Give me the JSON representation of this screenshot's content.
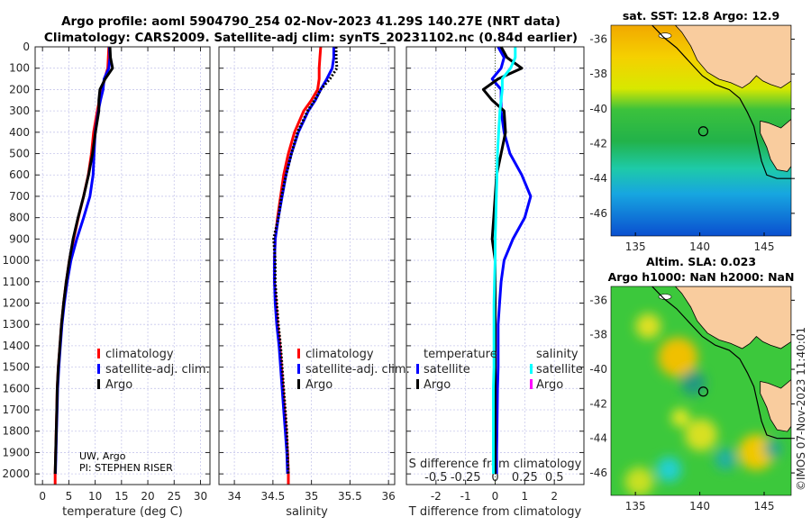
{
  "chart_data": {
    "type": "line",
    "title": [
      "Argo profile: aoml 5904790_254 02-Nov-2023 41.29S 140.27E (NRT data)",
      "Climatology: CARS2009. Satellite-adj clim: synTS_20231102.nc (0.84d earlier)"
    ],
    "depth_axis": {
      "ylim": [
        0,
        2050
      ],
      "reversed": true,
      "ticks": [
        0,
        100,
        200,
        300,
        400,
        500,
        600,
        700,
        800,
        900,
        1000,
        1100,
        1200,
        1300,
        1400,
        1500,
        1600,
        1700,
        1800,
        1900,
        2000
      ],
      "tick_labels": [
        "0",
        "100",
        "200",
        "300",
        "400",
        "500",
        "600",
        "700",
        "800",
        "900",
        "1000",
        "1100",
        "1200",
        "1300",
        "1400",
        "1500",
        "1600",
        "1700",
        "1800",
        "1900",
        "2000"
      ]
    },
    "depth": [
      0,
      50,
      100,
      150,
      200,
      250,
      300,
      400,
      500,
      600,
      700,
      800,
      900,
      1000,
      1100,
      1200,
      1300,
      1400,
      1500,
      1600,
      1700,
      1800,
      1900,
      2000
    ],
    "panels": [
      {
        "id": "temperature",
        "xlabel": "temperature (deg C)",
        "xlim": [
          -1.4,
          31.8
        ],
        "xticks": [
          0,
          5,
          10,
          15,
          20,
          25,
          30
        ],
        "xtick_labels": [
          "0",
          "5",
          "10",
          "15",
          "20",
          "25",
          "30"
        ],
        "grid": true,
        "series": [
          {
            "name": "climatology",
            "color": "#ff0000",
            "values": [
              12.6,
              12.5,
              12.4,
              11.8,
              11.3,
              10.8,
              10.4,
              9.7,
              9.3,
              8.7,
              7.8,
              6.8,
              5.9,
              5.1,
              4.5,
              4.0,
              3.6,
              3.3,
              3.0,
              2.8,
              2.7,
              2.6,
              2.5,
              2.4
            ]
          },
          {
            "name": "satellite-adj. clim.",
            "color": "#0000ff",
            "values": [
              12.7,
              12.8,
              12.6,
              11.7,
              11.5,
              11.0,
              10.6,
              10.0,
              9.8,
              9.6,
              9.0,
              7.8,
              6.5,
              5.4,
              4.7,
              4.15,
              3.7,
              3.4,
              3.1,
              2.88,
              2.77,
              2.66,
              2.55,
              2.45
            ]
          },
          {
            "name": "Argo",
            "color": "#000000",
            "values": [
              12.8,
              12.9,
              13.3,
              11.9,
              10.9,
              10.7,
              10.7,
              10.05,
              9.5,
              8.75,
              7.8,
              6.75,
              5.8,
              5.1,
              4.5,
              4.0,
              3.6,
              3.3,
              3.0,
              2.8,
              2.7,
              2.6,
              2.5,
              2.4
            ]
          }
        ],
        "legend": [
          "climatology",
          "satellite-adj. clim.",
          "Argo"
        ],
        "annotation": [
          "UW, Argo",
          "PI: STEPHEN RISER"
        ]
      },
      {
        "id": "salinity",
        "xlabel": "salinity",
        "xlim": [
          33.8,
          36.08
        ],
        "xticks": [
          34,
          34.5,
          35,
          35.5,
          36
        ],
        "xtick_labels": [
          "34",
          "34.5",
          "35",
          "35.5",
          "36"
        ],
        "grid": true,
        "series": [
          {
            "name": "climatology",
            "color": "#ff0000",
            "values": [
              35.12,
              35.11,
              35.1,
              35.1,
              35.08,
              35.0,
              34.9,
              34.78,
              34.7,
              34.64,
              34.6,
              34.56,
              34.53,
              34.52,
              34.52,
              34.54,
              34.56,
              34.59,
              34.61,
              34.63,
              34.65,
              34.67,
              34.69,
              34.7
            ]
          },
          {
            "name": "satellite-adj. clim.",
            "color": "#0000ff",
            "values": [
              35.29,
              35.29,
              35.27,
              35.2,
              35.12,
              35.05,
              34.96,
              34.83,
              34.74,
              34.67,
              34.62,
              34.57,
              34.53,
              34.52,
              34.52,
              34.53,
              34.55,
              34.58,
              34.6,
              34.62,
              34.64,
              34.66,
              34.68,
              34.69
            ]
          },
          {
            "name": "Argo",
            "color": "#000000",
            "dotted": true,
            "values": [
              35.32,
              35.32,
              35.33,
              35.24,
              35.12,
              35.04,
              34.95,
              34.82,
              34.74,
              34.67,
              34.61,
              34.57,
              34.51,
              34.53,
              34.53,
              34.55,
              34.57,
              34.6,
              34.62,
              34.64,
              34.66,
              34.68,
              34.69,
              34.7
            ]
          }
        ],
        "legend": [
          "climatology",
          "satellite-adj. clim.",
          "Argo"
        ]
      },
      {
        "id": "difference",
        "xlabel": "T difference from climatology",
        "xlim": [
          -3,
          3
        ],
        "xticks": [
          -2,
          -1,
          0,
          1,
          2
        ],
        "xtick_labels": [
          "-2",
          "-1",
          "0",
          "1",
          "2"
        ],
        "grid": true,
        "secondary_axis": {
          "label": "S difference from climatology",
          "xlim": [
            -0.75,
            0.75
          ],
          "ticks": [
            -0.5,
            -0.25,
            0,
            0.25,
            0.5
          ],
          "tick_labels": [
            "-0.5",
            "-0.25",
            "0",
            "0.25",
            "0.5"
          ]
        },
        "series": [
          {
            "name": "temperature satellite",
            "color": "#0000ff",
            "axis": "T",
            "values": [
              0.1,
              0.3,
              0.2,
              -0.1,
              0.2,
              0.2,
              0.2,
              0.3,
              0.5,
              0.9,
              1.2,
              1.0,
              0.6,
              0.3,
              0.2,
              0.15,
              0.1,
              0.1,
              0.1,
              0.08,
              0.07,
              0.06,
              0.05,
              0.05
            ]
          },
          {
            "name": "temperature Argo",
            "color": "#000000",
            "axis": "T",
            "values": [
              0.2,
              0.4,
              0.9,
              0.1,
              -0.4,
              -0.1,
              0.3,
              0.35,
              0.2,
              0.05,
              0.0,
              -0.05,
              -0.1,
              0.0,
              0.0,
              0.0,
              0.0,
              0.0,
              0.0,
              0.0,
              0.0,
              0.0,
              0.0,
              0.0
            ]
          },
          {
            "name": "salinity satellite",
            "color": "#00ffff",
            "axis": "S",
            "values": [
              0.17,
              0.17,
              0.13,
              0.06,
              0.06,
              0.05,
              0.04,
              0.03,
              0.02,
              0.015,
              0.01,
              0.005,
              0.0,
              0.0,
              -0.005,
              -0.01,
              -0.01,
              -0.01,
              -0.01,
              -0.015,
              -0.015,
              -0.015,
              -0.015,
              -0.015
            ]
          }
        ],
        "legend": {
          "temperature_heading": "temperature",
          "salinity_heading": "salinity",
          "temperature": [
            {
              "label": "satellite",
              "color": "#0000ff"
            },
            {
              "label": "Argo",
              "color": "#000000"
            }
          ],
          "salinity": [
            {
              "label": "satellite",
              "color": "#00ffff"
            },
            {
              "label": "Argo",
              "color": "#ff00ff"
            }
          ]
        }
      }
    ]
  },
  "maps": [
    {
      "id": "sst",
      "title": [
        "sat. SST: 12.8 Argo: 12.9"
      ],
      "float_position": {
        "lon": 140.27,
        "lat": -41.29
      }
    },
    {
      "id": "sla",
      "title": [
        "Altim. SLA: 0.023",
        "Argo h1000: NaN h2000: NaN"
      ],
      "float_position": {
        "lon": 140.27,
        "lat": -41.29
      }
    }
  ],
  "map_axes": {
    "lon_lim": [
      133.1,
      147.1
    ],
    "lat_lim": [
      -47.3,
      -35.2
    ],
    "lon_ticks": [
      135,
      140,
      145
    ],
    "lon_tick_labels": [
      "135",
      "140",
      "145"
    ],
    "lat_ticks": [
      -36,
      -38,
      -40,
      -42,
      -44,
      -46
    ],
    "lat_tick_labels": [
      "-36",
      "-38",
      "-40",
      "-42",
      "-44",
      "-46"
    ]
  },
  "colors": {
    "land": "#f9cc9e",
    "grid": "#c8c8ec"
  },
  "copyright": "©IMOS 07-Nov-2023 11:40:01"
}
